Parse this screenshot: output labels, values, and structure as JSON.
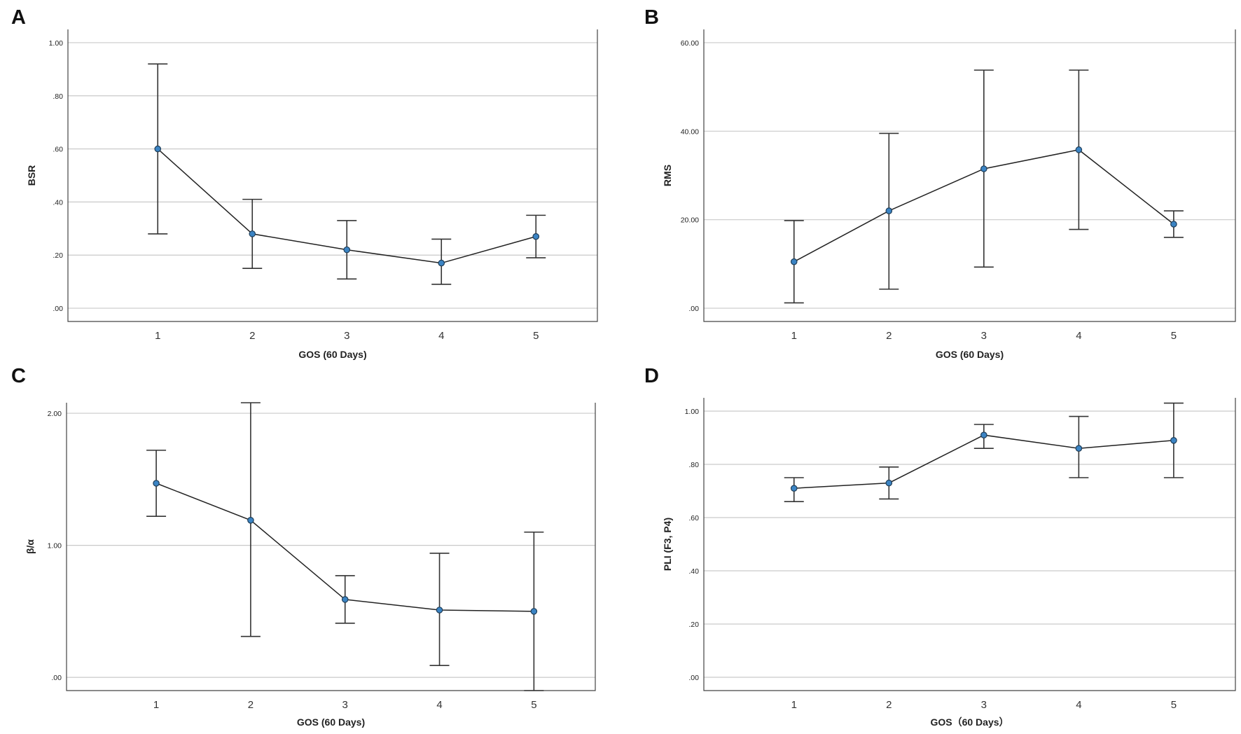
{
  "colors": {
    "point_fill": "#3b84c4",
    "point_stroke": "#1f3d57",
    "line": "#222222",
    "grid": "#c9c9c9"
  },
  "chart_data": [
    {
      "panel": "A",
      "type": "line",
      "error_bars": true,
      "xlabel": "GOS (60 Days)",
      "ylabel": "BSR",
      "categories": [
        "1",
        "2",
        "3",
        "4",
        "5"
      ],
      "values": [
        0.6,
        0.28,
        0.22,
        0.17,
        0.27
      ],
      "lower": [
        0.28,
        0.15,
        0.11,
        0.09,
        0.19
      ],
      "upper": [
        0.92,
        0.41,
        0.33,
        0.26,
        0.35
      ],
      "yticks": [
        0,
        0.2,
        0.4,
        0.6,
        0.8,
        1.0
      ],
      "ytick_labels": [
        ".00",
        ".20",
        ".40",
        ".60",
        ".80",
        "1.00"
      ],
      "ylim": [
        -0.05,
        1.05
      ],
      "grid": true
    },
    {
      "panel": "B",
      "type": "line",
      "error_bars": true,
      "xlabel": "GOS (60 Days)",
      "ylabel": "RMS",
      "categories": [
        "1",
        "2",
        "3",
        "4",
        "5"
      ],
      "values": [
        10.5,
        22.0,
        31.5,
        35.8,
        19.0
      ],
      "lower": [
        1.2,
        4.3,
        9.3,
        17.8,
        16.0
      ],
      "upper": [
        19.8,
        39.5,
        53.8,
        53.8,
        22.0
      ],
      "yticks": [
        0,
        20,
        40,
        60
      ],
      "ytick_labels": [
        ".00",
        "20.00",
        "40.00",
        "60.00"
      ],
      "ylim": [
        -3,
        63
      ],
      "grid": true
    },
    {
      "panel": "C",
      "type": "line",
      "error_bars": true,
      "xlabel": "GOS (60 Days)",
      "ylabel": "β/α",
      "categories": [
        "1",
        "2",
        "3",
        "4",
        "5"
      ],
      "values": [
        1.47,
        1.19,
        0.59,
        0.51,
        0.5
      ],
      "lower": [
        1.22,
        0.31,
        0.41,
        0.09,
        -0.1
      ],
      "upper": [
        1.72,
        2.08,
        0.77,
        0.94,
        1.1
      ],
      "yticks": [
        0,
        1,
        2
      ],
      "ytick_labels": [
        ".00",
        "1.00",
        "2.00"
      ],
      "ylim": [
        -0.1,
        2.08
      ],
      "grid": true
    },
    {
      "panel": "D",
      "type": "line",
      "error_bars": true,
      "xlabel": "GOS（60 Days）",
      "ylabel": "PLI (F3, P4)",
      "categories": [
        "1",
        "2",
        "3",
        "4",
        "5"
      ],
      "values": [
        0.71,
        0.73,
        0.91,
        0.86,
        0.89
      ],
      "lower": [
        0.66,
        0.67,
        0.86,
        0.75,
        0.75
      ],
      "upper": [
        0.75,
        0.79,
        0.95,
        0.98,
        1.03
      ],
      "yticks": [
        0,
        0.2,
        0.4,
        0.6,
        0.8,
        1.0
      ],
      "ytick_labels": [
        ".00",
        ".20",
        ".40",
        ".60",
        ".80",
        "1.00"
      ],
      "ylim": [
        -0.05,
        1.05
      ],
      "grid": true
    }
  ]
}
